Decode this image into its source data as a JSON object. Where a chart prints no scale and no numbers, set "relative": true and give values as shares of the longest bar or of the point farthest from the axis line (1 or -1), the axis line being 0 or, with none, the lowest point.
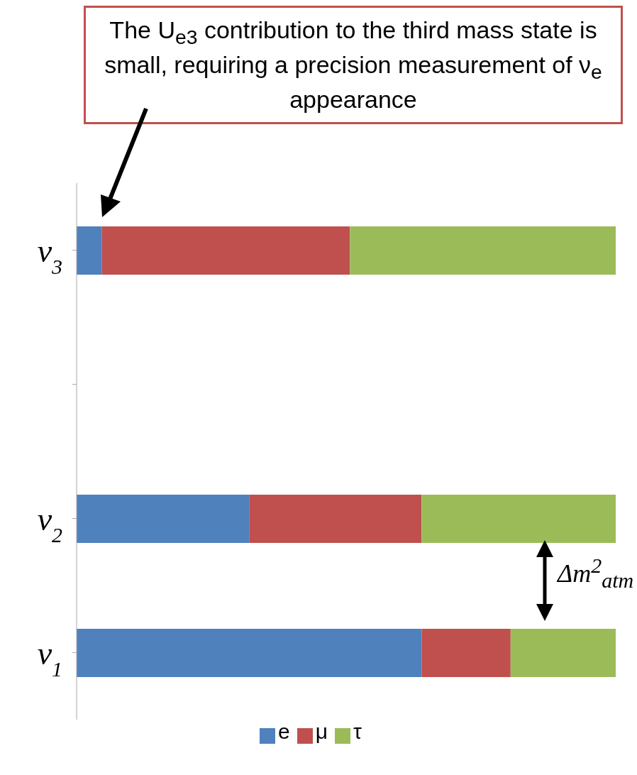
{
  "chart_data": {
    "type": "bar",
    "orientation": "horizontal",
    "stacked": true,
    "relative": true,
    "categories": [
      "ν$_{3}$",
      null,
      "ν$_{2}$",
      "ν$_{1}$"
    ],
    "series": [
      {
        "name": "e",
        "color": "#4f81bd",
        "values": [
          0.047,
          null,
          0.32,
          0.64
        ]
      },
      {
        "name": "μ",
        "color": "#c0504d",
        "values": [
          0.46,
          null,
          0.32,
          0.165
        ]
      },
      {
        "name": "τ",
        "color": "#9bbb59",
        "values": [
          0.493,
          null,
          0.36,
          0.195
        ]
      }
    ],
    "legend": "bottom",
    "annotations": [
      "The U$_{e3}$ contribution to the third mass state is small, requiring a precision measurement of ν$_{e}$ appearance",
      "Δm$^{2}$$_{atm}$"
    ]
  }
}
